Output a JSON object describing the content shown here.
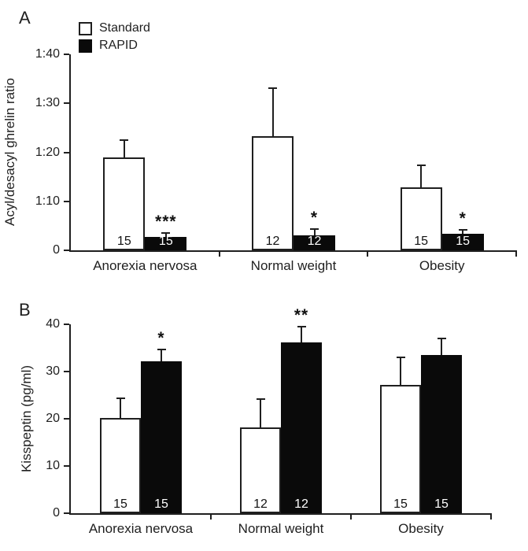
{
  "figure": {
    "background": "#ffffff",
    "line_color": "#1f1f1f",
    "open_bar_fill": "#ffffff",
    "filled_bar_fill": "#000000"
  },
  "legend": {
    "position": "top-left",
    "items": [
      {
        "label": "Standard",
        "style": "open"
      },
      {
        "label": "RAPID",
        "style": "filled"
      }
    ]
  },
  "chart_data": [
    {
      "type": "bar",
      "panel": "A",
      "title": "",
      "xlabel": "",
      "ylabel": "Acyl/desacyl ghrelin ratio",
      "categories": [
        "Anorexia nervosa",
        "Normal weight",
        "Obesity"
      ],
      "ylim": [
        0,
        40
      ],
      "ytick_labels": [
        "0",
        "1:10",
        "1:20",
        "1:30",
        "1:40"
      ],
      "grid": false,
      "legend_position": "top-left",
      "series": [
        {
          "name": "Standard",
          "fill": "#ffffff",
          "values": [
            19.0,
            23.3,
            12.8
          ],
          "errors_plus": [
            3.5,
            9.8,
            4.6
          ],
          "n": [
            15,
            12,
            15
          ]
        },
        {
          "name": "RAPID",
          "fill": "#000000",
          "values": [
            2.7,
            3.0,
            3.3
          ],
          "errors_plus": [
            0.9,
            1.3,
            0.9
          ],
          "n": [
            15,
            12,
            15
          ]
        }
      ],
      "significance_above_rapid": [
        "***",
        "*",
        "*"
      ]
    },
    {
      "type": "bar",
      "panel": "B",
      "title": "",
      "xlabel": "",
      "ylabel": "Kisspeptin (pg/ml)",
      "categories": [
        "Anorexia nervosa",
        "Normal weight",
        "Obesity"
      ],
      "ylim": [
        0,
        40
      ],
      "ytick_labels": [
        "0",
        "10",
        "20",
        "30",
        "40"
      ],
      "grid": false,
      "series": [
        {
          "name": "Standard",
          "fill": "#ffffff",
          "values": [
            20.1,
            18.1,
            27.2
          ],
          "errors_plus": [
            4.3,
            6.1,
            5.8
          ],
          "n": [
            15,
            12,
            15
          ]
        },
        {
          "name": "RAPID",
          "fill": "#000000",
          "values": [
            32.2,
            36.2,
            33.5
          ],
          "errors_plus": [
            2.5,
            3.3,
            3.5
          ],
          "n": [
            15,
            12,
            15
          ]
        }
      ],
      "significance_above_rapid": [
        "*",
        "**",
        ""
      ]
    }
  ]
}
